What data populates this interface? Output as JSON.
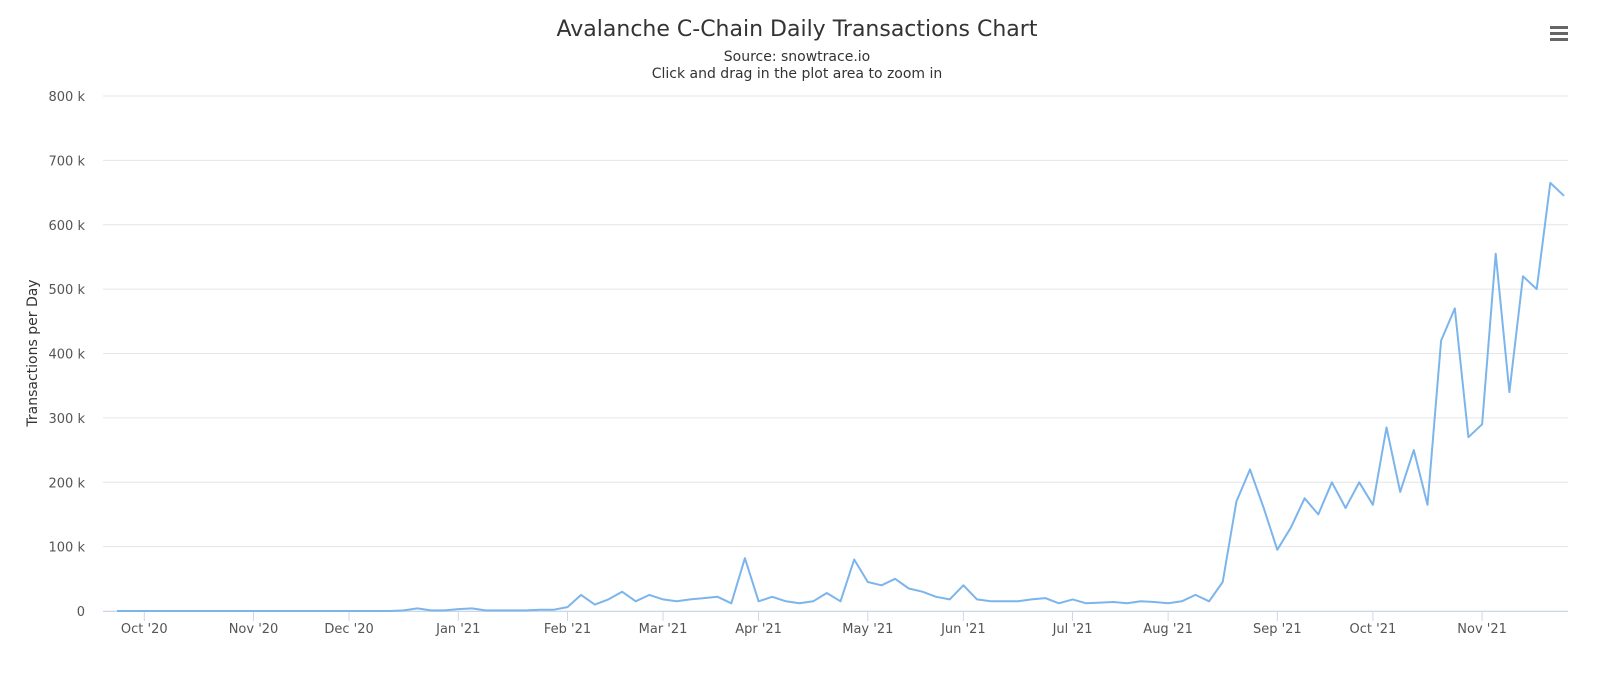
{
  "chart_data": {
    "type": "line",
    "title": "Avalanche C-Chain Daily Transactions Chart",
    "subtitle": "Source: snowtrace.io",
    "subtitle2": "Click and drag in the plot area to zoom in",
    "y_label": "Transactions per Day",
    "color": "#7cb5ec",
    "grid": true,
    "ylim": [
      0,
      800000
    ],
    "yticks": [
      0,
      {
        "value": 100000,
        "label": "100 k"
      },
      {
        "value": 200000,
        "label": "200 k"
      },
      {
        "value": 300000,
        "label": "300 k"
      },
      {
        "value": 400000,
        "label": "400 k"
      },
      {
        "value": 500000,
        "label": "500 k"
      },
      {
        "value": 600000,
        "label": "600 k"
      },
      {
        "value": 700000,
        "label": "700 k"
      },
      {
        "value": 800000,
        "label": "800 k"
      }
    ],
    "categories": [
      null,
      null,
      "Oct '20",
      null,
      null,
      null,
      null,
      null,
      null,
      null,
      "Nov '20",
      null,
      null,
      null,
      null,
      null,
      null,
      "Dec '20",
      null,
      null,
      null,
      null,
      null,
      null,
      null,
      "Jan '21",
      null,
      null,
      null,
      null,
      null,
      null,
      null,
      "Feb '21",
      null,
      null,
      null,
      null,
      null,
      null,
      "Mar '21",
      null,
      null,
      null,
      null,
      null,
      null,
      "Apr '21",
      null,
      null,
      null,
      null,
      null,
      null,
      null,
      "May '21",
      null,
      null,
      null,
      null,
      null,
      null,
      "Jun '21",
      null,
      null,
      null,
      null,
      null,
      null,
      null,
      "Jul '21",
      null,
      null,
      null,
      null,
      null,
      null,
      "Aug '21",
      null,
      null,
      null,
      null,
      null,
      null,
      null,
      "Sep '21",
      null,
      null,
      null,
      null,
      null,
      null,
      "Oct '21",
      null,
      null,
      null,
      null,
      null,
      null,
      null,
      "Nov '21",
      null,
      null,
      null,
      null,
      null,
      null
    ],
    "values": [
      0,
      0,
      0,
      0,
      0,
      0,
      0,
      0,
      0,
      0,
      0,
      0,
      0,
      0,
      0,
      0,
      0,
      0,
      0,
      0,
      0,
      1000,
      4000,
      1000,
      1000,
      3000,
      4000,
      1000,
      1000,
      1000,
      1000,
      2000,
      2000,
      6000,
      25000,
      10000,
      18000,
      30000,
      15000,
      25000,
      18000,
      15000,
      18000,
      20000,
      22000,
      12000,
      82000,
      15000,
      22000,
      15000,
      12000,
      15000,
      28000,
      15000,
      80000,
      45000,
      40000,
      50000,
      35000,
      30000,
      22000,
      18000,
      40000,
      18000,
      15000,
      15000,
      15000,
      18000,
      20000,
      12000,
      18000,
      12000,
      13000,
      14000,
      12000,
      15000,
      14000,
      12000,
      15000,
      25000,
      15000,
      45000,
      170000,
      220000,
      160000,
      95000,
      130000,
      175000,
      150000,
      200000,
      160000,
      200000,
      165000,
      285000,
      185000,
      250000,
      165000,
      420000,
      470000,
      270000,
      290000,
      555000,
      340000,
      520000,
      500000,
      665000,
      645000
    ]
  }
}
